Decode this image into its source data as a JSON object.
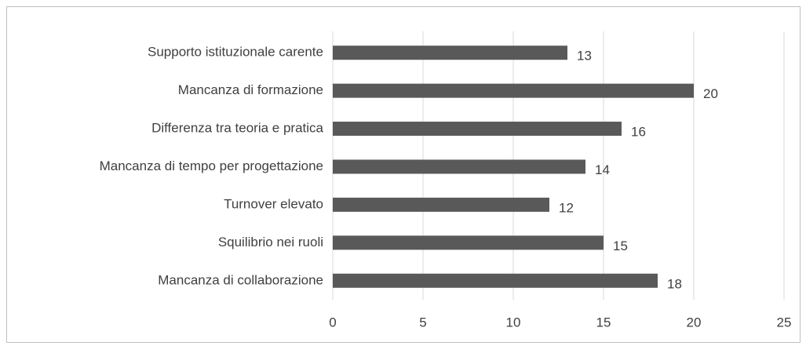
{
  "chart_data": {
    "type": "hbar",
    "categories": [
      "Supporto istituzionale carente",
      "Mancanza di formazione",
      "Differenza tra teoria e pratica",
      "Mancanza di tempo per progettazione",
      "Turnover elevato",
      "Squilibrio nei ruoli",
      "Mancanza di collaborazione"
    ],
    "values": [
      13,
      20,
      16,
      14,
      12,
      15,
      18
    ],
    "color": "#595959",
    "xlim": [
      0,
      25
    ],
    "xticks": [
      0,
      5,
      10,
      15,
      20,
      25
    ],
    "grid": true
  }
}
